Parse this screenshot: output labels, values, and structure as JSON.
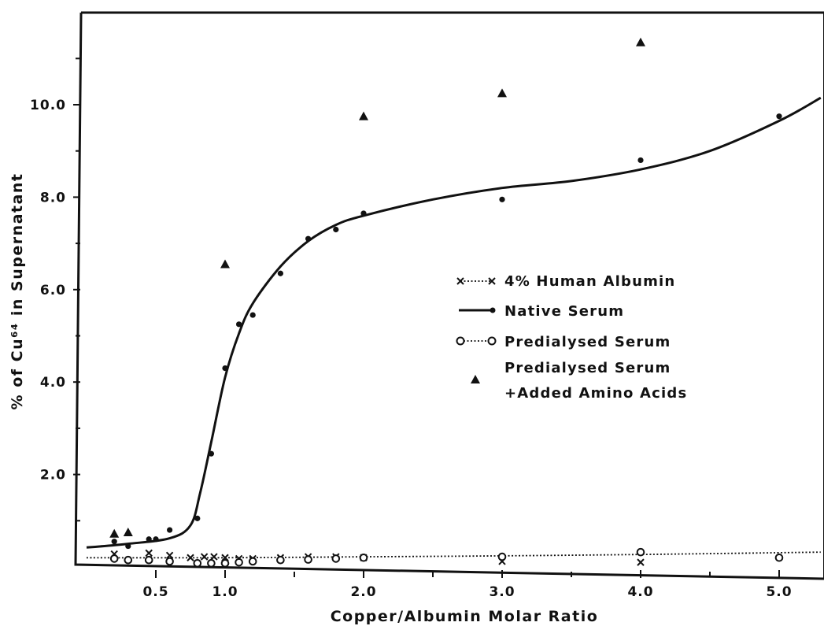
{
  "chart_data": {
    "type": "scatter",
    "title": "",
    "xlabel": "Copper/Albumin Molar Ratio",
    "ylabel": "% of Cu⁶⁴ in Supernatant",
    "xlim": [
      0,
      5.3
    ],
    "ylim": [
      0,
      12
    ],
    "xticks": [
      {
        "value": 0.5,
        "label": "0.5"
      },
      {
        "value": 1.0,
        "label": "1.0"
      },
      {
        "value": 2.0,
        "label": "2.0"
      },
      {
        "value": 3.0,
        "label": "3.0"
      },
      {
        "value": 4.0,
        "label": "4.0"
      },
      {
        "value": 5.0,
        "label": "5.0"
      }
    ],
    "yticks": [
      {
        "value": 2.0,
        "label": "2.0"
      },
      {
        "value": 4.0,
        "label": "4.0"
      },
      {
        "value": 6.0,
        "label": "6.0"
      },
      {
        "value": 8.0,
        "label": "8.0"
      },
      {
        "value": 10.0,
        "label": "10.0"
      }
    ],
    "grid": false,
    "legend_position": "center-right",
    "series": [
      {
        "name": "4% Human Albumin",
        "marker": "x",
        "line": "dotted",
        "points": [
          [
            0.2,
            0.28
          ],
          [
            0.45,
            0.3
          ],
          [
            0.6,
            0.25
          ],
          [
            0.75,
            0.2
          ],
          [
            0.85,
            0.22
          ],
          [
            0.92,
            0.22
          ],
          [
            1.0,
            0.2
          ],
          [
            1.1,
            0.18
          ],
          [
            1.2,
            0.18
          ],
          [
            1.4,
            0.2
          ],
          [
            1.6,
            0.22
          ],
          [
            1.8,
            0.22
          ],
          [
            2.0,
            0.2
          ],
          [
            3.0,
            0.12
          ],
          [
            4.0,
            0.1
          ]
        ],
        "curve": [
          [
            0.0,
            0.2
          ],
          [
            1.0,
            0.2
          ],
          [
            2.0,
            0.22
          ],
          [
            3.0,
            0.24
          ],
          [
            4.0,
            0.27
          ],
          [
            5.3,
            0.32
          ]
        ]
      },
      {
        "name": "Native Serum",
        "marker": "dot",
        "line": "solid",
        "points": [
          [
            0.2,
            0.55
          ],
          [
            0.3,
            0.45
          ],
          [
            0.45,
            0.6
          ],
          [
            0.5,
            0.6
          ],
          [
            0.6,
            0.8
          ],
          [
            0.8,
            1.05
          ],
          [
            0.9,
            2.45
          ],
          [
            1.0,
            4.3
          ],
          [
            1.1,
            5.25
          ],
          [
            1.2,
            5.45
          ],
          [
            1.4,
            6.35
          ],
          [
            1.6,
            7.1
          ],
          [
            1.8,
            7.3
          ],
          [
            2.0,
            7.65
          ],
          [
            3.0,
            7.95
          ],
          [
            4.0,
            8.8
          ],
          [
            5.0,
            9.75
          ]
        ],
        "curve": [
          [
            0.0,
            0.42
          ],
          [
            0.3,
            0.5
          ],
          [
            0.6,
            0.62
          ],
          [
            0.75,
            0.9
          ],
          [
            0.82,
            1.6
          ],
          [
            0.9,
            2.7
          ],
          [
            1.0,
            4.1
          ],
          [
            1.1,
            5.05
          ],
          [
            1.2,
            5.7
          ],
          [
            1.4,
            6.5
          ],
          [
            1.6,
            7.05
          ],
          [
            1.8,
            7.4
          ],
          [
            2.0,
            7.6
          ],
          [
            2.5,
            7.95
          ],
          [
            3.0,
            8.2
          ],
          [
            3.5,
            8.35
          ],
          [
            4.0,
            8.6
          ],
          [
            4.5,
            9.0
          ],
          [
            5.0,
            9.65
          ],
          [
            5.3,
            10.15
          ]
        ]
      },
      {
        "name": "Predialysed Serum",
        "marker": "circle",
        "line": "dotted",
        "points": [
          [
            0.2,
            0.18
          ],
          [
            0.3,
            0.15
          ],
          [
            0.45,
            0.15
          ],
          [
            0.6,
            0.12
          ],
          [
            0.8,
            0.08
          ],
          [
            0.9,
            0.08
          ],
          [
            1.0,
            0.08
          ],
          [
            1.1,
            0.1
          ],
          [
            1.2,
            0.12
          ],
          [
            1.4,
            0.15
          ],
          [
            1.6,
            0.16
          ],
          [
            1.8,
            0.18
          ],
          [
            2.0,
            0.2
          ],
          [
            3.0,
            0.22
          ],
          [
            4.0,
            0.32
          ],
          [
            5.0,
            0.2
          ]
        ],
        "curve": []
      },
      {
        "name": "Predialysed Serum\n+Added Amino Acids",
        "marker": "triangle",
        "line": "none",
        "points": [
          [
            0.2,
            0.72
          ],
          [
            0.3,
            0.75
          ],
          [
            1.0,
            6.55
          ],
          [
            2.0,
            9.75
          ],
          [
            3.0,
            10.25
          ],
          [
            4.0,
            11.35
          ]
        ],
        "curve": []
      }
    ],
    "legend": [
      {
        "label": "4% Human Albumin"
      },
      {
        "label": "Native Serum"
      },
      {
        "label": "Predialysed Serum"
      },
      {
        "label_lines": [
          "Predialysed Serum",
          "+Added Amino Acids"
        ]
      }
    ]
  }
}
